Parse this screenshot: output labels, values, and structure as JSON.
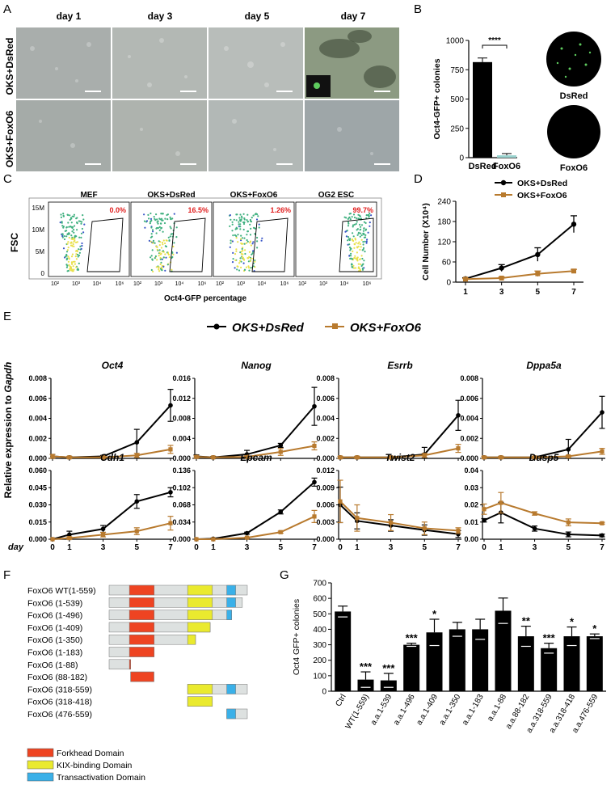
{
  "panels": {
    "A": {
      "letter": "A",
      "columns": [
        "day 1",
        "day 3",
        "day 5",
        "day 7"
      ],
      "rows": [
        "OKS+DsRed",
        "OKS+FoxO6"
      ]
    },
    "B": {
      "letter": "B",
      "ylabel": "Oct4-GFP+ colonies",
      "significance": "****",
      "well_labels": [
        "DsRed",
        "FoxO6"
      ]
    },
    "C": {
      "letter": "C",
      "titles": [
        "MEF",
        "OKS+DsRed",
        "OKS+FoxO6",
        "OG2 ESC"
      ],
      "percents": [
        "0.0%",
        "16.5%",
        "1.26%",
        "99.7%"
      ],
      "ylabel": "FSC",
      "yticks": [
        "15M",
        "10M",
        "5M",
        "0"
      ],
      "xticks": [
        "10²",
        "10³",
        "10⁴",
        "10⁶"
      ],
      "xlabel": "Oct4-GFP percentage"
    },
    "D": {
      "letter": "D"
    },
    "E": {
      "letter": "E",
      "legend": [
        "OKS+DsRed",
        "OKS+FoxO6"
      ],
      "shared_ylabel": "Relative expression to ",
      "shared_ylabel_italic": "Gapdh",
      "day_label": "day"
    },
    "F": {
      "letter": "F",
      "constructs": [
        "FoxO6 WT(1-559)",
        "FoxO6 (1-539)",
        "FoxO6 (1-496)",
        "FoxO6 (1-409)",
        "FoxO6 (1-350)",
        "FoxO6 (1-183)",
        "FoxO6 (1-88)",
        "FoxO6 (88-182)",
        "FoxO6 (318-559)",
        "FoxO6 (318-418)",
        "FoxO6 (476-559)"
      ],
      "legend": [
        "Forkhead Domain",
        "KIX-binding Domain",
        "Transactivation Domain"
      ],
      "colors": {
        "forkhead": "#ee4422",
        "kix": "#eaea2e",
        "trans": "#3ab0e8",
        "body": "#dde1e0"
      }
    },
    "G": {
      "letter": "G"
    }
  },
  "chart_data": [
    {
      "id": "B",
      "type": "bar",
      "categories": [
        "DsRed",
        "FoxO6"
      ],
      "values": [
        815,
        20
      ],
      "errors": [
        35,
        15
      ],
      "ylabel": "Oct4-GFP+ colonies",
      "ylim": [
        0,
        1000
      ],
      "yticks": [
        0,
        250,
        500,
        750,
        1000
      ]
    },
    {
      "id": "D",
      "type": "line",
      "ylabel": "Cell Number (X10⁴)",
      "x": [
        1,
        3,
        5,
        7
      ],
      "xticks": [
        1,
        3,
        5,
        7
      ],
      "ylim": [
        0,
        240
      ],
      "yticks": [
        0,
        60,
        120,
        180,
        240
      ],
      "series": [
        {
          "name": "OKS+DsRed",
          "values": [
            10,
            42,
            82,
            172
          ],
          "errors": [
            3,
            10,
            20,
            25
          ],
          "color": "#000000"
        },
        {
          "name": "OKS+FoxO6",
          "values": [
            9,
            12,
            25,
            33
          ],
          "errors": [
            2,
            3,
            8,
            5
          ],
          "color": "#b87a2e"
        }
      ]
    },
    {
      "id": "E",
      "type": "line",
      "x": [
        0,
        1,
        3,
        5,
        7
      ],
      "xticks": [
        0,
        1,
        3,
        5,
        7
      ],
      "panels": [
        {
          "gene": "Oct4",
          "ylim": [
            0,
            0.008
          ],
          "yticks": [
            "0.000",
            "0.002",
            "0.004",
            "0.006",
            "0.008"
          ],
          "series": [
            {
              "name": "OKS+DsRed",
              "values": [
                0.0002,
                0.0001,
                0.0002,
                0.0016,
                0.0053
              ],
              "errors": [
                0.0002,
                0.0001,
                0.0001,
                0.0013,
                0.0016
              ]
            },
            {
              "name": "OKS+FoxO6",
              "values": [
                0.0002,
                0.0001,
                0.0001,
                0.0003,
                0.0009
              ],
              "errors": [
                0.0002,
                0.0001,
                0.0001,
                0.0002,
                0.0004
              ]
            }
          ]
        },
        {
          "gene": "Nanog",
          "ylim": [
            0,
            0.016
          ],
          "yticks": [
            "0.000",
            "0.004",
            "0.008",
            "0.012",
            "0.016"
          ],
          "series": [
            {
              "name": "OKS+DsRed",
              "values": [
                0.0004,
                0.0002,
                0.0008,
                0.0026,
                0.0104
              ],
              "errors": [
                0.0003,
                0.0002,
                0.0008,
                0.0004,
                0.0038
              ]
            },
            {
              "name": "OKS+FoxO6",
              "values": [
                0.0003,
                0.0002,
                0.0003,
                0.0013,
                0.0025
              ],
              "errors": [
                0.0002,
                0.0001,
                0.0002,
                0.0007,
                0.0008
              ]
            }
          ]
        },
        {
          "gene": "Esrrb",
          "ylim": [
            0,
            0.008
          ],
          "yticks": [
            "0.000",
            "0.002",
            "0.004",
            "0.006",
            "0.008"
          ],
          "series": [
            {
              "name": "OKS+DsRed",
              "values": [
                0.0001,
                0.0001,
                0.0001,
                0.0004,
                0.0043
              ],
              "errors": [
                0.0001,
                0.0001,
                0.0001,
                0.0007,
                0.0015
              ]
            },
            {
              "name": "OKS+FoxO6",
              "values": [
                0.0001,
                0.0001,
                0.0001,
                0.0003,
                0.001
              ],
              "errors": [
                0.0001,
                0.0001,
                0.0001,
                0.0002,
                0.0004
              ]
            }
          ]
        },
        {
          "gene": "Dppa5a",
          "ylim": [
            0,
            0.008
          ],
          "yticks": [
            "0.000",
            "0.002",
            "0.004",
            "0.006",
            "0.008"
          ],
          "series": [
            {
              "name": "OKS+DsRed",
              "values": [
                0.0001,
                0.0001,
                0.0001,
                0.0009,
                0.0046
              ],
              "errors": [
                0.0001,
                0.0001,
                0.0001,
                0.001,
                0.0016
              ]
            },
            {
              "name": "OKS+FoxO6",
              "values": [
                0.0001,
                0.0001,
                0.0001,
                0.0002,
                0.0007
              ],
              "errors": [
                0.0001,
                0.0001,
                0.0001,
                0.0001,
                0.0003
              ]
            }
          ]
        },
        {
          "gene": "Cdh1",
          "ylim": [
            0,
            0.06
          ],
          "yticks": [
            "0.000",
            "0.015",
            "0.030",
            "0.045",
            "0.060"
          ],
          "series": [
            {
              "name": "OKS+DsRed",
              "values": [
                0.0,
                0.004,
                0.009,
                0.033,
                0.041
              ],
              "errors": [
                0.0,
                0.003,
                0.003,
                0.006,
                0.004
              ]
            },
            {
              "name": "OKS+FoxO6",
              "values": [
                0.0,
                0.001,
                0.004,
                0.007,
                0.014
              ],
              "errors": [
                0.0,
                0.001,
                0.002,
                0.003,
                0.006
              ]
            }
          ]
        },
        {
          "gene": "Epcam",
          "ylim": [
            0,
            0.136
          ],
          "yticks": [
            "0.000",
            "0.034",
            "0.068",
            "0.102",
            "0.136"
          ],
          "series": [
            {
              "name": "OKS+DsRed",
              "values": [
                0.0,
                0.001,
                0.012,
                0.054,
                0.113
              ],
              "errors": [
                0.0,
                0.001,
                0.002,
                0.004,
                0.008
              ]
            },
            {
              "name": "OKS+FoxO6",
              "values": [
                0.0,
                0.0,
                0.003,
                0.014,
                0.045
              ],
              "errors": [
                0.0,
                0.0,
                0.001,
                0.002,
                0.012
              ]
            }
          ]
        },
        {
          "gene": "Twist2",
          "ylim": [
            0,
            0.012
          ],
          "yticks": [
            "0.000",
            "0.003",
            "0.006",
            "0.009",
            "0.012"
          ],
          "series": [
            {
              "name": "OKS+DsRed",
              "values": [
                0.006,
                0.0032,
                0.0024,
                0.0016,
                0.0009
              ],
              "errors": [
                0.0031,
                0.0014,
                0.001,
                0.0009,
                0.0006
              ]
            },
            {
              "name": "OKS+FoxO6",
              "values": [
                0.0066,
                0.0037,
                0.0029,
                0.0019,
                0.0015
              ],
              "errors": [
                0.0037,
                0.0023,
                0.0014,
                0.0011,
                0.0005
              ]
            }
          ]
        },
        {
          "gene": "Dusp5",
          "ylim": [
            0,
            0.04
          ],
          "yticks": [
            "0.00",
            "0.01",
            "0.02",
            "0.03",
            "0.04"
          ],
          "series": [
            {
              "name": "OKS+DsRed",
              "values": [
                0.011,
                0.0155,
                0.0062,
                0.0028,
                0.0022
              ],
              "errors": [
                0.001,
                0.006,
                0.0015,
                0.0014,
                0.0008
              ]
            },
            {
              "name": "OKS+FoxO6",
              "values": [
                0.0175,
                0.0212,
                0.015,
                0.0098,
                0.0093
              ],
              "errors": [
                0.003,
                0.006,
                0.001,
                0.002,
                0.0005
              ]
            }
          ]
        }
      ]
    },
    {
      "id": "G",
      "type": "bar",
      "ylabel": "Oct4 GFP+ colonies",
      "ylim": [
        0,
        700
      ],
      "yticks": [
        0,
        100,
        200,
        300,
        400,
        500,
        600,
        700
      ],
      "categories": [
        "Ctrl",
        "WT(1-559)",
        "a.a.1-539",
        "a.a.1-496",
        "a.a.1-409",
        "a.a.1-350",
        "a.a.1-183",
        "a.a.1-88",
        "a.a.88-182",
        "a.a.318-559",
        "a.a.318-418",
        "a.a.476-559"
      ],
      "values": [
        515,
        75,
        70,
        300,
        380,
        400,
        400,
        520,
        355,
        278,
        355,
        355
      ],
      "errors": [
        35,
        50,
        45,
        10,
        85,
        45,
        65,
        82,
        65,
        32,
        60,
        15
      ],
      "significance": [
        "",
        "***",
        "***",
        "***",
        "*",
        "",
        "",
        "",
        "**",
        "***",
        "*",
        "*"
      ]
    }
  ]
}
